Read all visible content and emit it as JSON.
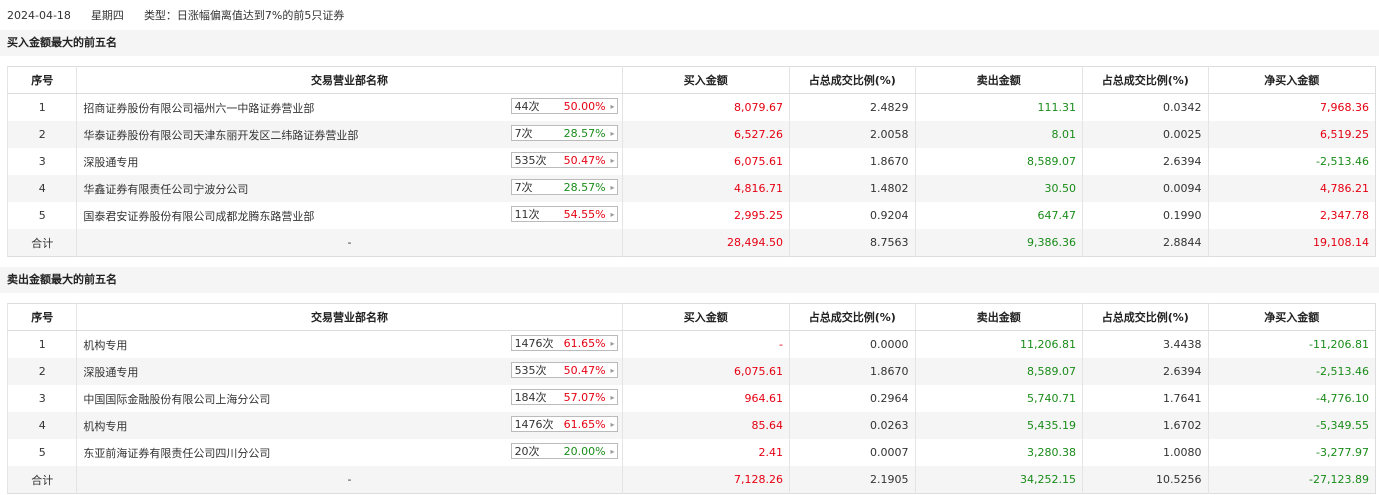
{
  "info": {
    "date": "2024-04-18",
    "weekday": "星期四",
    "type": "类型：日涨幅偏离值达到7%的前5只证券"
  },
  "colors": {
    "red": "#e60012",
    "green": "#1a8c1a"
  },
  "headers": [
    "序号",
    "交易营业部名称",
    "买入金额",
    "占总成交比例(%)",
    "卖出金额",
    "占总成交比例(%)",
    "净买入金额"
  ],
  "buy": {
    "title": "买入金额最大的前五名",
    "rows": [
      {
        "idx": "1",
        "name": "招商证券股份有限公司福州六一中路证券营业部",
        "cnt": "44次",
        "pct": "50.00%",
        "pct_color": "red",
        "buy": "8,079.67",
        "buy_ratio": "2.4829",
        "sell": "111.31",
        "sell_ratio": "0.0342",
        "net": "7,968.36",
        "net_color": "red"
      },
      {
        "idx": "2",
        "name": "华泰证券股份有限公司天津东丽开发区二纬路证券营业部",
        "cnt": "7次",
        "pct": "28.57%",
        "pct_color": "green",
        "buy": "6,527.26",
        "buy_ratio": "2.0058",
        "sell": "8.01",
        "sell_ratio": "0.0025",
        "net": "6,519.25",
        "net_color": "red"
      },
      {
        "idx": "3",
        "name": "深股通专用",
        "cnt": "535次",
        "pct": "50.47%",
        "pct_color": "red",
        "buy": "6,075.61",
        "buy_ratio": "1.8670",
        "sell": "8,589.07",
        "sell_ratio": "2.6394",
        "net": "-2,513.46",
        "net_color": "green"
      },
      {
        "idx": "4",
        "name": "华鑫证券有限责任公司宁波分公司",
        "cnt": "7次",
        "pct": "28.57%",
        "pct_color": "green",
        "buy": "4,816.71",
        "buy_ratio": "1.4802",
        "sell": "30.50",
        "sell_ratio": "0.0094",
        "net": "4,786.21",
        "net_color": "red"
      },
      {
        "idx": "5",
        "name": "国泰君安证券股份有限公司成都龙腾东路营业部",
        "cnt": "11次",
        "pct": "54.55%",
        "pct_color": "red",
        "buy": "2,995.25",
        "buy_ratio": "0.9204",
        "sell": "647.47",
        "sell_ratio": "0.1990",
        "net": "2,347.78",
        "net_color": "red"
      }
    ],
    "total": {
      "idx": "合计",
      "name": "-",
      "buy": "28,494.50",
      "buy_ratio": "8.7563",
      "sell": "9,386.36",
      "sell_ratio": "2.8844",
      "net": "19,108.14",
      "net_color": "red"
    }
  },
  "sell": {
    "title": "卖出金额最大的前五名",
    "rows": [
      {
        "idx": "1",
        "name": "机构专用",
        "cnt": "1476次",
        "pct": "61.65%",
        "pct_color": "red",
        "buy": "-",
        "buy_ratio": "0.0000",
        "sell": "11,206.81",
        "sell_ratio": "3.4438",
        "net": "-11,206.81",
        "net_color": "green"
      },
      {
        "idx": "2",
        "name": "深股通专用",
        "cnt": "535次",
        "pct": "50.47%",
        "pct_color": "red",
        "buy": "6,075.61",
        "buy_ratio": "1.8670",
        "sell": "8,589.07",
        "sell_ratio": "2.6394",
        "net": "-2,513.46",
        "net_color": "green"
      },
      {
        "idx": "3",
        "name": "中国国际金融股份有限公司上海分公司",
        "cnt": "184次",
        "pct": "57.07%",
        "pct_color": "red",
        "buy": "964.61",
        "buy_ratio": "0.2964",
        "sell": "5,740.71",
        "sell_ratio": "1.7641",
        "net": "-4,776.10",
        "net_color": "green"
      },
      {
        "idx": "4",
        "name": "机构专用",
        "cnt": "1476次",
        "pct": "61.65%",
        "pct_color": "red",
        "buy": "85.64",
        "buy_ratio": "0.0263",
        "sell": "5,435.19",
        "sell_ratio": "1.6702",
        "net": "-5,349.55",
        "net_color": "green"
      },
      {
        "idx": "5",
        "name": "东亚前海证券有限责任公司四川分公司",
        "cnt": "20次",
        "pct": "20.00%",
        "pct_color": "green",
        "buy": "2.41",
        "buy_ratio": "0.0007",
        "sell": "3,280.38",
        "sell_ratio": "1.0080",
        "net": "-3,277.97",
        "net_color": "green"
      }
    ],
    "total": {
      "idx": "合计",
      "name": "-",
      "buy": "7,128.26",
      "buy_ratio": "2.1905",
      "sell": "34,252.15",
      "sell_ratio": "10.5256",
      "net": "-27,123.89",
      "net_color": "green"
    }
  }
}
